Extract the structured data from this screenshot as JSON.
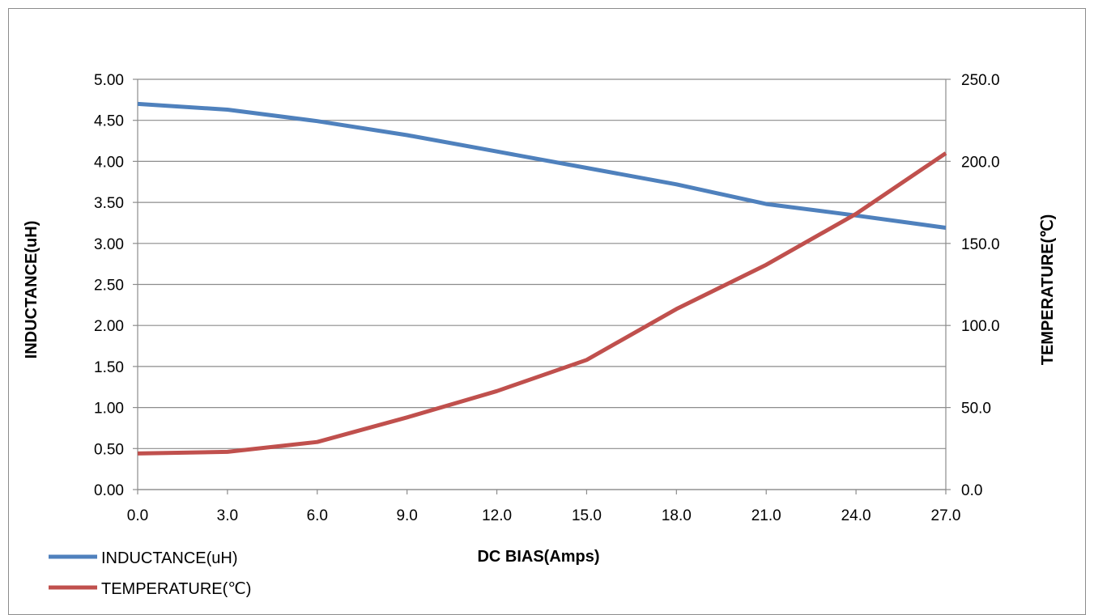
{
  "chart_data": {
    "type": "line",
    "xlabel": "DC BIAS(Amps)",
    "ylabel": "INDUCTANCE(uH)",
    "y2label": "TEMPERATURE(℃)",
    "x": [
      0,
      3,
      6,
      9,
      12,
      15,
      18,
      21,
      24,
      27
    ],
    "x_tick_labels": [
      "0.0",
      "3.0",
      "6.0",
      "9.0",
      "12.0",
      "15.0",
      "18.0",
      "21.0",
      "24.0",
      "27.0"
    ],
    "xlim": [
      0,
      27
    ],
    "ylim": [
      0,
      5
    ],
    "y_tick_labels": [
      "0.00",
      "0.50",
      "1.00",
      "1.50",
      "2.00",
      "2.50",
      "3.00",
      "3.50",
      "4.00",
      "4.50",
      "5.00"
    ],
    "y2lim": [
      0,
      250
    ],
    "y2_tick_labels": [
      "0.0",
      "50.0",
      "100.0",
      "150.0",
      "200.0",
      "250.0"
    ],
    "grid": true,
    "legend_position": "bottom-left",
    "series": [
      {
        "name": "INDUCTANCE(uH)",
        "axis": "left",
        "color": "#4f81bd",
        "values": [
          4.7,
          4.63,
          4.49,
          4.32,
          4.12,
          3.92,
          3.72,
          3.48,
          3.34,
          3.19
        ]
      },
      {
        "name": "TEMPERATURE(℃)",
        "axis": "right",
        "color": "#c0504d",
        "values": [
          22,
          23,
          29,
          44,
          60,
          79,
          110,
          137,
          168,
          205
        ]
      }
    ]
  }
}
